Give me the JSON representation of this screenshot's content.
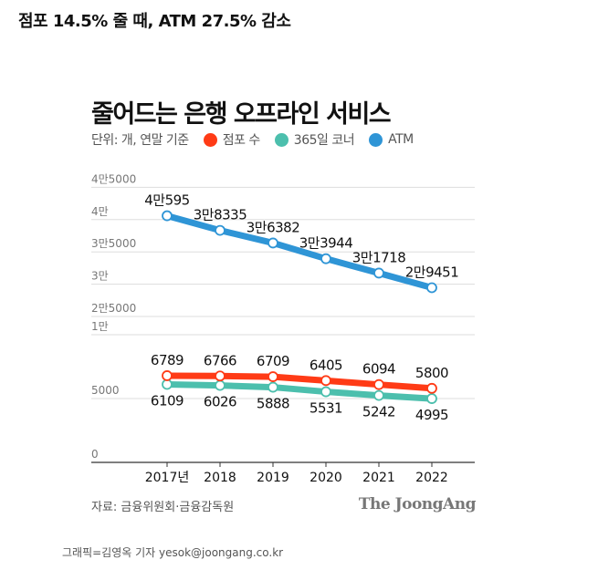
{
  "headline": "점포 14.5% 줄 때, ATM 27.5% 감소",
  "chart_data": {
    "type": "line",
    "title": "줄어드는 은행 오프라인 서비스",
    "unit_note": "단위: 개, 연말 기준",
    "categories": [
      "2017년",
      "2018",
      "2019",
      "2020",
      "2021",
      "2022"
    ],
    "y_ticks": [
      {
        "value": 0,
        "label": "0"
      },
      {
        "value": 5000,
        "label": "5000"
      },
      {
        "value": 10000,
        "label": "1만"
      },
      {
        "value": 25000,
        "label": "2만5000"
      },
      {
        "value": 30000,
        "label": "3만"
      },
      {
        "value": 35000,
        "label": "3만5000"
      },
      {
        "value": 40000,
        "label": "4만"
      },
      {
        "value": 45000,
        "label": "4만5000"
      }
    ],
    "axis_break": [
      10000,
      25000
    ],
    "grid": true,
    "legend_position": "top-left",
    "series": [
      {
        "name": "점포 수",
        "color": "#ff3b16",
        "values": [
          6789,
          6766,
          6709,
          6405,
          6094,
          5800
        ],
        "labels": [
          "6789",
          "6766",
          "6709",
          "6405",
          "6094",
          "5800"
        ],
        "label_pos": "above"
      },
      {
        "name": "365일 코너",
        "color": "#4cbfad",
        "values": [
          6109,
          6026,
          5888,
          5531,
          5242,
          4995
        ],
        "labels": [
          "6109",
          "6026",
          "5888",
          "5531",
          "5242",
          "4995"
        ],
        "label_pos": "below"
      },
      {
        "name": "ATM",
        "color": "#2f95d6",
        "values": [
          40595,
          38335,
          36382,
          33944,
          31718,
          29451
        ],
        "labels": [
          "4만595",
          "3만8335",
          "3만6382",
          "3만3944",
          "3만1718",
          "2만9451"
        ],
        "label_pos": "above"
      }
    ]
  },
  "source": "자료: 금융위원회·금융감독원",
  "brand": "The JoongAng",
  "credit": "그래픽=김영옥 기자 yesok@joongang.co.kr"
}
